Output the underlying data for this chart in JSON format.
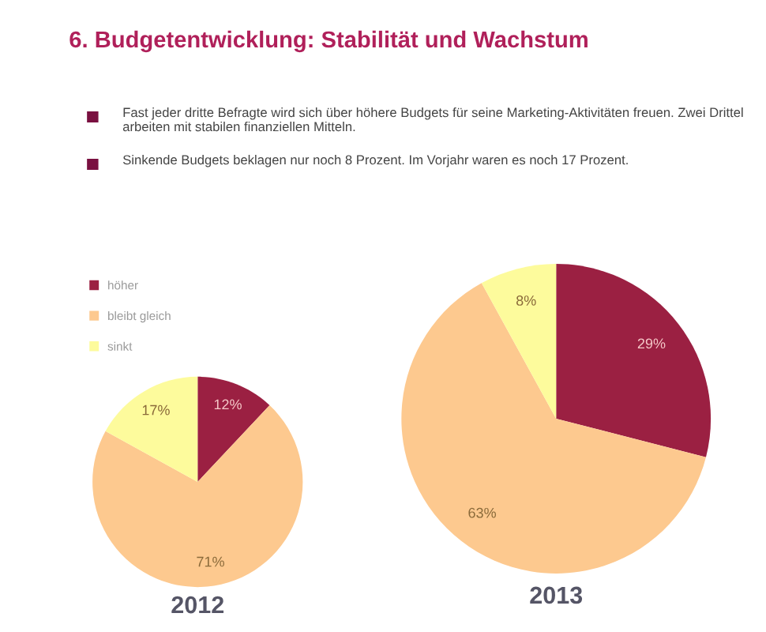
{
  "chart_data": [
    {
      "type": "pie",
      "title": "2012",
      "categories": [
        "höher",
        "bleibt gleich",
        "sinkt"
      ],
      "values": [
        12,
        71,
        17
      ],
      "value_labels": [
        "12%",
        "71%",
        "17%"
      ],
      "colors": [
        "#9b2042",
        "#fdc98f",
        "#fdfb9c"
      ],
      "legend": "top left",
      "annotations": [
        "6. Budgetentwicklung: Stabilität und Wachstum",
        "Fast jeder dritte Befragte wird sich über höhere Budgets für seine Marketing-Aktivitäten freuen. Zwei Drittel arbeiten mit stabilen finanziellen Mitteln.",
        "Sinkende Budgets beklagen nur noch 8 Prozent. Im Vorjahr waren es noch 17 Prozent."
      ]
    },
    {
      "type": "pie",
      "title": "2013",
      "categories": [
        null,
        null,
        null
      ],
      "values": [
        29,
        63,
        8
      ],
      "value_labels": [
        "29%",
        "63%",
        "8%"
      ],
      "colors": [
        "#9b2042",
        "#fdc98f",
        "#fdfb9c"
      ]
    }
  ]
}
